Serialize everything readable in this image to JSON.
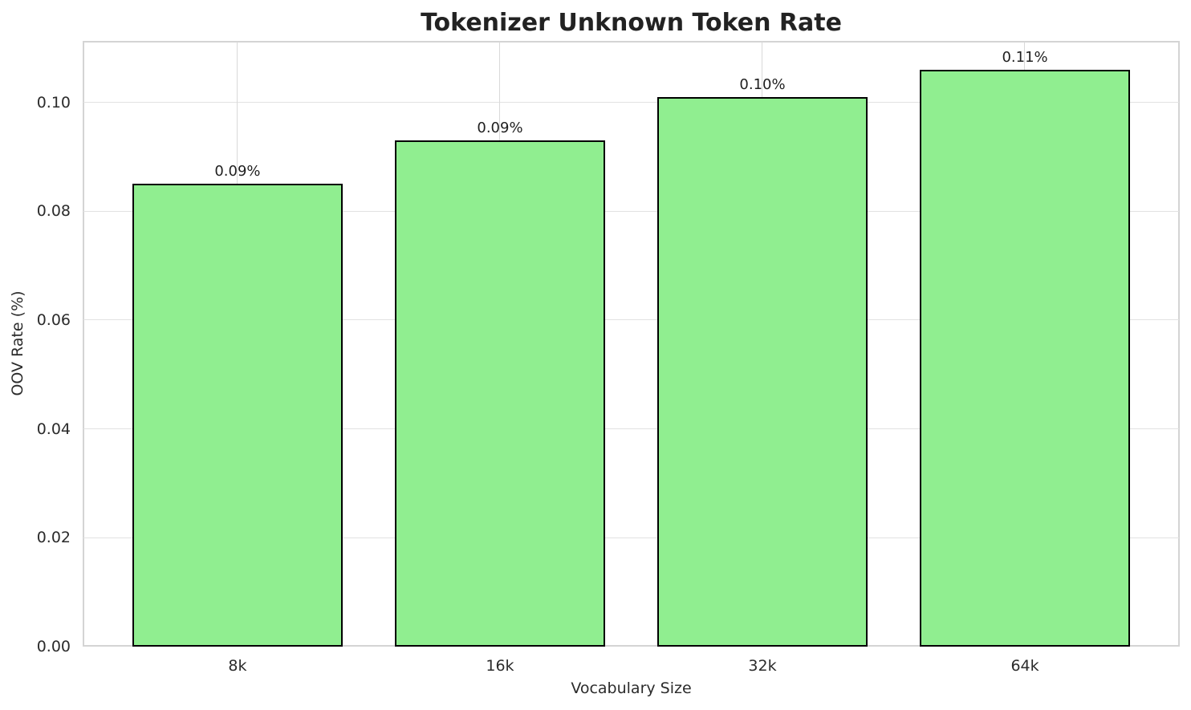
{
  "chart_data": {
    "type": "bar",
    "title": "Tokenizer Unknown Token Rate",
    "xlabel": "Vocabulary Size",
    "ylabel": "OOV Rate (%)",
    "categories": [
      "8k",
      "16k",
      "32k",
      "64k"
    ],
    "values": [
      0.085,
      0.093,
      0.101,
      0.106
    ],
    "bar_labels": [
      "0.09%",
      "0.09%",
      "0.10%",
      "0.11%"
    ],
    "yticks": [
      0.0,
      0.02,
      0.04,
      0.06,
      0.08,
      0.1
    ],
    "ytick_labels": [
      "0.00",
      "0.02",
      "0.04",
      "0.06",
      "0.08",
      "0.10"
    ],
    "ylim": [
      0,
      0.1113
    ],
    "grid": true,
    "legend_position": "none",
    "colors": {
      "bar_fill": "#90EE90",
      "bar_edge": "#000000",
      "grid_h": "#e2e2e2",
      "grid_v": "#d9d9d9",
      "spine": "#d4d4d4",
      "text": "#2b2b2b"
    }
  }
}
